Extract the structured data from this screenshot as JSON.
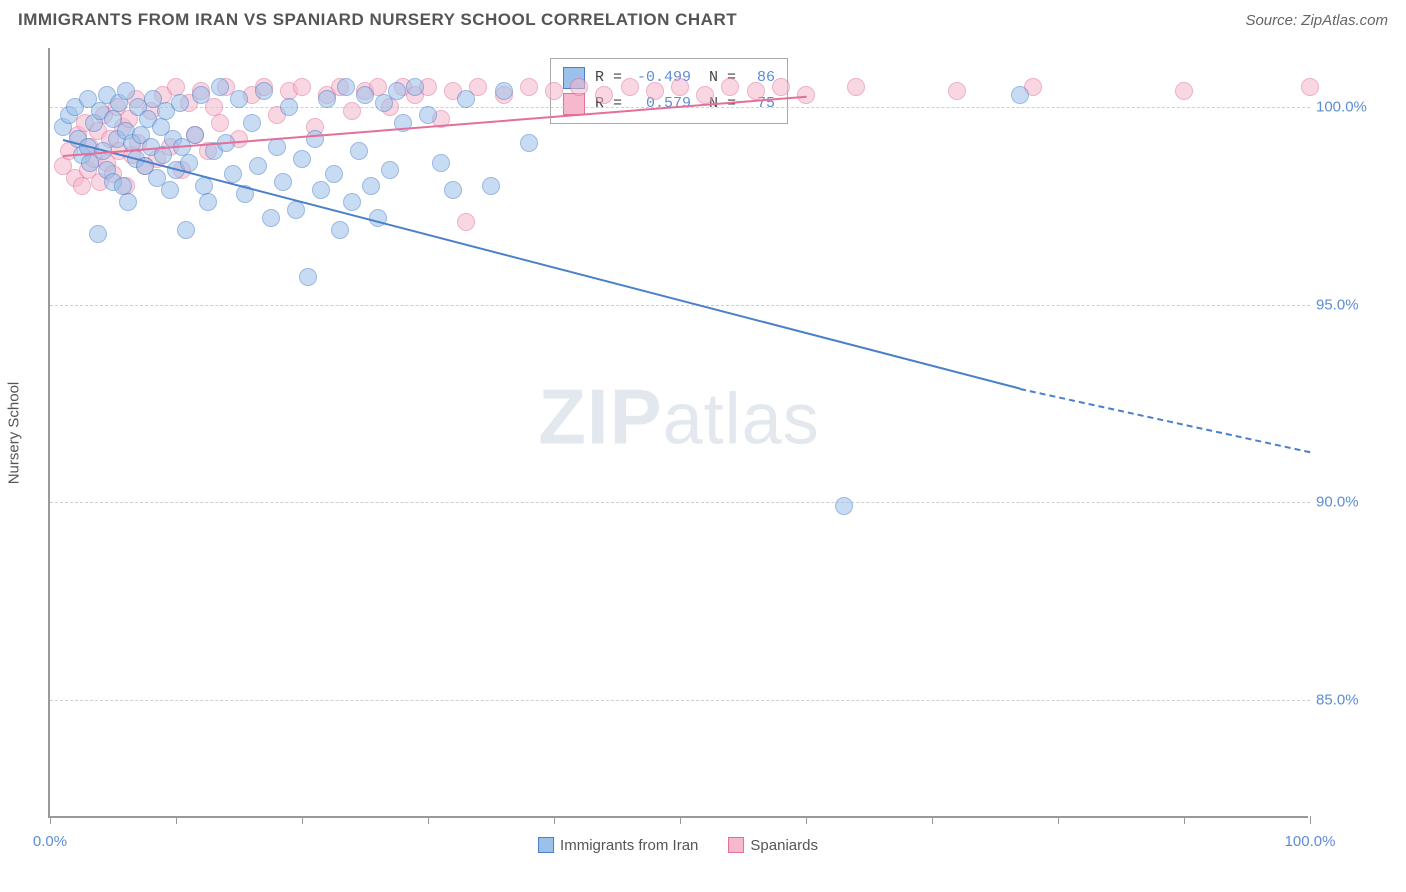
{
  "header": {
    "title": "IMMIGRANTS FROM IRAN VS SPANIARD NURSERY SCHOOL CORRELATION CHART",
    "source": "Source: ZipAtlas.com"
  },
  "chart": {
    "type": "scatter",
    "ylabel": "Nursery School",
    "watermark": "ZIPatlas",
    "background_color": "#ffffff",
    "grid_color": "#cfcfcf",
    "axis_color": "#999999",
    "xlim": [
      0,
      100
    ],
    "ylim": [
      82,
      101.5
    ],
    "yticks": [
      85.0,
      90.0,
      95.0,
      100.0
    ],
    "ytick_labels": [
      "85.0%",
      "90.0%",
      "95.0%",
      "100.0%"
    ],
    "xticks": [
      0,
      10,
      20,
      30,
      40,
      50,
      60,
      70,
      80,
      90,
      100
    ],
    "xtick_labels": {
      "0": "0.0%",
      "100": "100.0%"
    },
    "marker_radius": 9,
    "marker_opacity": 0.55,
    "series": [
      {
        "name": "Immigrants from Iran",
        "color_fill": "#9bc0ea",
        "color_stroke": "#4a7fc9",
        "R": -0.499,
        "N": 86,
        "trend": {
          "x1": 1,
          "y1": 99.2,
          "x_solid_end": 77,
          "y_solid_end": 92.9,
          "x2": 100,
          "y2": 91.3,
          "width": 2
        },
        "points": [
          [
            1,
            99.5
          ],
          [
            1.5,
            99.8
          ],
          [
            2,
            100.0
          ],
          [
            2.2,
            99.2
          ],
          [
            2.5,
            98.8
          ],
          [
            3,
            99.0
          ],
          [
            3,
            100.2
          ],
          [
            3.2,
            98.6
          ],
          [
            3.5,
            99.6
          ],
          [
            3.8,
            96.8
          ],
          [
            4,
            99.9
          ],
          [
            4.2,
            98.9
          ],
          [
            4.5,
            100.3
          ],
          [
            4.5,
            98.4
          ],
          [
            5,
            99.7
          ],
          [
            5,
            98.1
          ],
          [
            5.3,
            99.2
          ],
          [
            5.5,
            100.1
          ],
          [
            5.8,
            98.0
          ],
          [
            6,
            99.4
          ],
          [
            6,
            100.4
          ],
          [
            6.2,
            97.6
          ],
          [
            6.5,
            99.1
          ],
          [
            6.8,
            98.7
          ],
          [
            7,
            100.0
          ],
          [
            7.2,
            99.3
          ],
          [
            7.5,
            98.5
          ],
          [
            7.8,
            99.7
          ],
          [
            8,
            99.0
          ],
          [
            8.2,
            100.2
          ],
          [
            8.5,
            98.2
          ],
          [
            8.8,
            99.5
          ],
          [
            9,
            98.8
          ],
          [
            9.2,
            99.9
          ],
          [
            9.5,
            97.9
          ],
          [
            9.8,
            99.2
          ],
          [
            10,
            98.4
          ],
          [
            10.3,
            100.1
          ],
          [
            10.5,
            99.0
          ],
          [
            10.8,
            96.9
          ],
          [
            11,
            98.6
          ],
          [
            11.5,
            99.3
          ],
          [
            12,
            100.3
          ],
          [
            12.2,
            98.0
          ],
          [
            12.5,
            97.6
          ],
          [
            13,
            98.9
          ],
          [
            13.5,
            100.5
          ],
          [
            14,
            99.1
          ],
          [
            14.5,
            98.3
          ],
          [
            15,
            100.2
          ],
          [
            15.5,
            97.8
          ],
          [
            16,
            99.6
          ],
          [
            16.5,
            98.5
          ],
          [
            17,
            100.4
          ],
          [
            17.5,
            97.2
          ],
          [
            18,
            99.0
          ],
          [
            18.5,
            98.1
          ],
          [
            19,
            100.0
          ],
          [
            19.5,
            97.4
          ],
          [
            20,
            98.7
          ],
          [
            20.5,
            95.7
          ],
          [
            21,
            99.2
          ],
          [
            21.5,
            97.9
          ],
          [
            22,
            100.2
          ],
          [
            22.5,
            98.3
          ],
          [
            23,
            96.9
          ],
          [
            23.5,
            100.5
          ],
          [
            24,
            97.6
          ],
          [
            24.5,
            98.9
          ],
          [
            25,
            100.3
          ],
          [
            25.5,
            98.0
          ],
          [
            26,
            97.2
          ],
          [
            26.5,
            100.1
          ],
          [
            27,
            98.4
          ],
          [
            27.5,
            100.4
          ],
          [
            28,
            99.6
          ],
          [
            29,
            100.5
          ],
          [
            30,
            99.8
          ],
          [
            31,
            98.6
          ],
          [
            32,
            97.9
          ],
          [
            33,
            100.2
          ],
          [
            35,
            98.0
          ],
          [
            36,
            100.4
          ],
          [
            38,
            99.1
          ],
          [
            63,
            89.9
          ],
          [
            77,
            100.3
          ]
        ]
      },
      {
        "name": "Spaniards",
        "color_fill": "#f5b8cc",
        "color_stroke": "#e36f9a",
        "R": 0.579,
        "N": 75,
        "trend": {
          "x1": 1,
          "y1": 98.8,
          "x_solid_end": 60,
          "y_solid_end": 100.3,
          "x2": 60,
          "y2": 100.3,
          "width": 2
        },
        "points": [
          [
            1,
            98.5
          ],
          [
            1.5,
            98.9
          ],
          [
            2,
            98.2
          ],
          [
            2.2,
            99.3
          ],
          [
            2.5,
            98.0
          ],
          [
            2.8,
            99.6
          ],
          [
            3,
            98.4
          ],
          [
            3.2,
            99.0
          ],
          [
            3.5,
            98.7
          ],
          [
            3.8,
            99.4
          ],
          [
            4,
            98.1
          ],
          [
            4.3,
            99.8
          ],
          [
            4.5,
            98.6
          ],
          [
            4.8,
            99.2
          ],
          [
            5,
            98.3
          ],
          [
            5.3,
            100.0
          ],
          [
            5.5,
            98.9
          ],
          [
            5.8,
            99.5
          ],
          [
            6,
            98.0
          ],
          [
            6.3,
            99.7
          ],
          [
            6.5,
            98.8
          ],
          [
            6.8,
            100.2
          ],
          [
            7,
            99.1
          ],
          [
            7.5,
            98.5
          ],
          [
            8,
            99.9
          ],
          [
            8.5,
            98.7
          ],
          [
            9,
            100.3
          ],
          [
            9.5,
            99.0
          ],
          [
            10,
            100.5
          ],
          [
            10.5,
            98.4
          ],
          [
            11,
            100.1
          ],
          [
            11.5,
            99.3
          ],
          [
            12,
            100.4
          ],
          [
            12.5,
            98.9
          ],
          [
            13,
            100.0
          ],
          [
            13.5,
            99.6
          ],
          [
            14,
            100.5
          ],
          [
            15,
            99.2
          ],
          [
            16,
            100.3
          ],
          [
            17,
            100.5
          ],
          [
            18,
            99.8
          ],
          [
            19,
            100.4
          ],
          [
            20,
            100.5
          ],
          [
            21,
            99.5
          ],
          [
            22,
            100.3
          ],
          [
            23,
            100.5
          ],
          [
            24,
            99.9
          ],
          [
            25,
            100.4
          ],
          [
            26,
            100.5
          ],
          [
            27,
            100.0
          ],
          [
            28,
            100.5
          ],
          [
            29,
            100.3
          ],
          [
            30,
            100.5
          ],
          [
            31,
            99.7
          ],
          [
            32,
            100.4
          ],
          [
            33,
            97.1
          ],
          [
            34,
            100.5
          ],
          [
            36,
            100.3
          ],
          [
            38,
            100.5
          ],
          [
            40,
            100.4
          ],
          [
            42,
            100.5
          ],
          [
            44,
            100.3
          ],
          [
            46,
            100.5
          ],
          [
            48,
            100.4
          ],
          [
            50,
            100.5
          ],
          [
            52,
            100.3
          ],
          [
            54,
            100.5
          ],
          [
            56,
            100.4
          ],
          [
            58,
            100.5
          ],
          [
            60,
            100.3
          ],
          [
            64,
            100.5
          ],
          [
            72,
            100.4
          ],
          [
            78,
            100.5
          ],
          [
            90,
            100.4
          ],
          [
            100,
            100.5
          ]
        ]
      }
    ],
    "bottom_legend": [
      {
        "label": "Immigrants from Iran",
        "fill": "#9bc0ea",
        "stroke": "#4a7fc9"
      },
      {
        "label": "Spaniards",
        "fill": "#f5b8cc",
        "stroke": "#e36f9a"
      }
    ]
  }
}
